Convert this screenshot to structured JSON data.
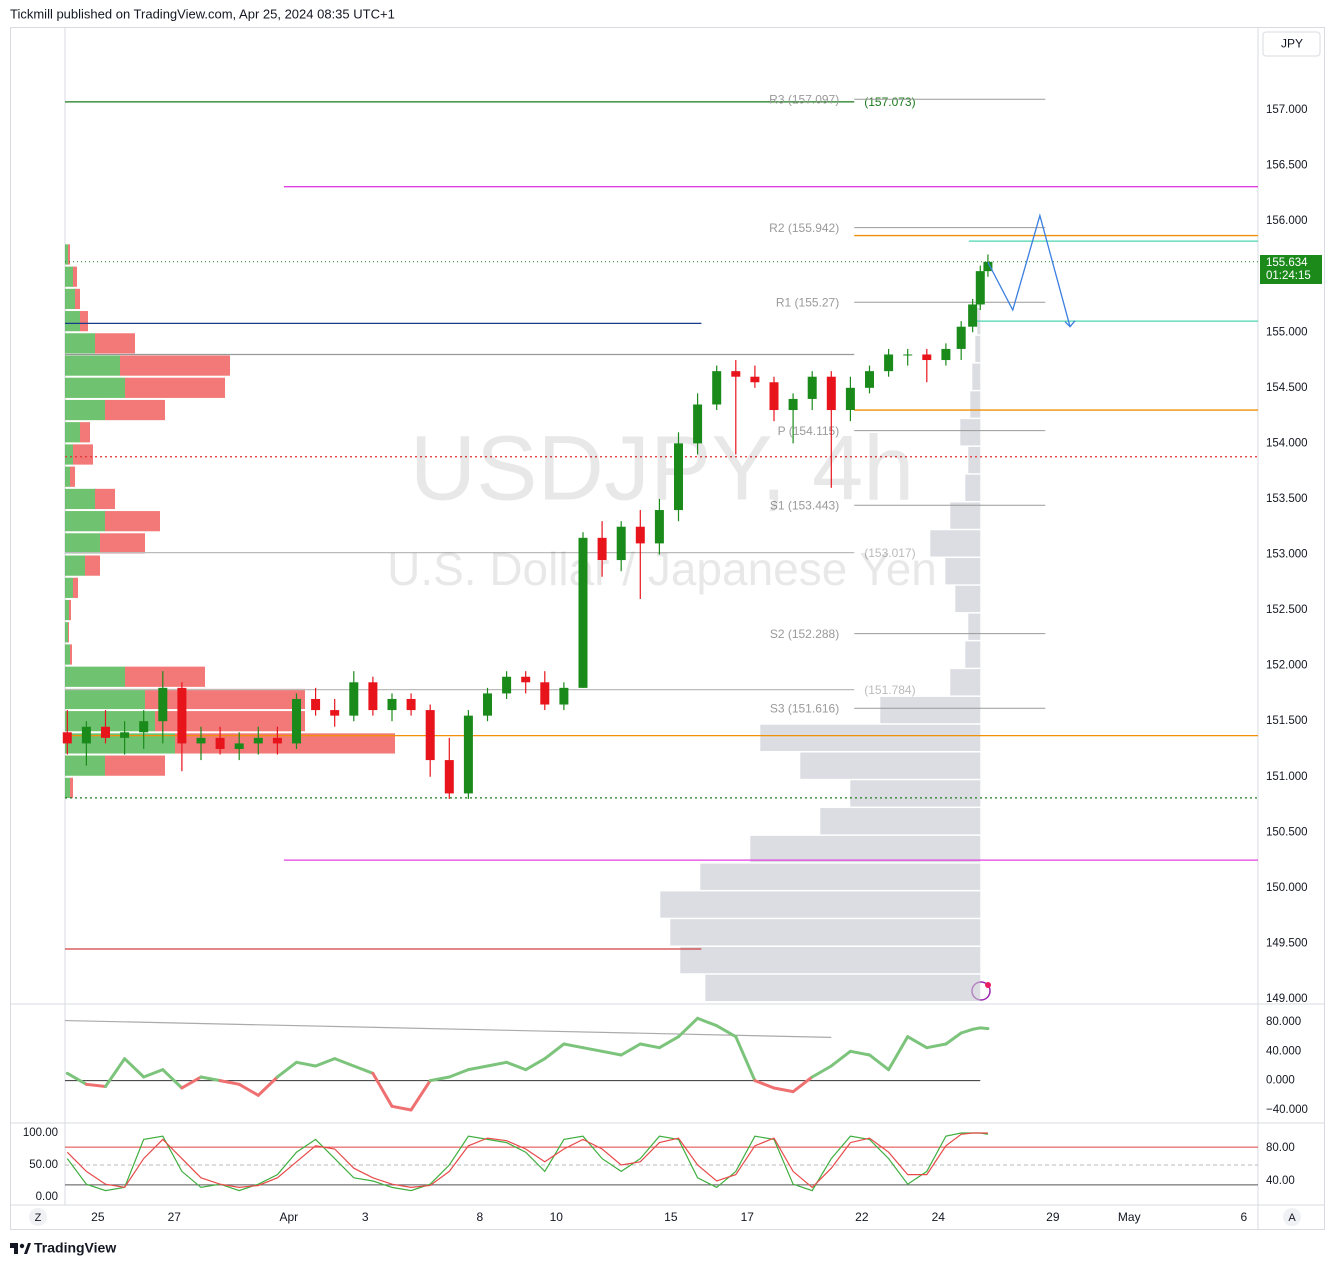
{
  "header": "Tickmill published on TradingView.com, Apr 25, 2024 08:35 UTC+1",
  "footer": "TradingView",
  "buttons": [
    "Z",
    "A"
  ],
  "chart_data": [
    {
      "type": "candlestick",
      "watermark": "USDJPY, 4h",
      "description": "U.S. Dollar / Japanese Yen",
      "currency": "JPY",
      "up_color": "#1a8a1a",
      "down_color": "#e8141c",
      "x": [
        -0.8,
        -0.3,
        0.2,
        0.7,
        1.2,
        1.7,
        2.2,
        2.7,
        3.2,
        3.7,
        4.2,
        4.7,
        5.2,
        5.7,
        6.2,
        6.7,
        7.2,
        7.7,
        8.2,
        8.7,
        9.2,
        9.7,
        10.2,
        10.7,
        11.2,
        11.7,
        12.2,
        12.7,
        13.2,
        13.7,
        14.2,
        14.7,
        15.2,
        15.7,
        16.2,
        16.7,
        17.2,
        17.7,
        18.2,
        18.7,
        19.2,
        19.7,
        20.2,
        20.7,
        21.2,
        21.7,
        22.2,
        22.6,
        22.9,
        23.1,
        23.3
      ],
      "open": [
        151.4,
        151.3,
        151.45,
        151.35,
        151.4,
        151.5,
        151.8,
        151.3,
        151.35,
        151.25,
        151.3,
        151.35,
        151.3,
        151.7,
        151.6,
        151.55,
        151.85,
        151.6,
        151.7,
        151.6,
        151.15,
        150.85,
        151.55,
        151.75,
        151.9,
        151.85,
        151.65,
        151.8,
        153.15,
        152.95,
        153.25,
        153.1,
        153.4,
        154.0,
        154.35,
        154.65,
        154.6,
        154.55,
        154.3,
        154.4,
        154.6,
        154.3,
        154.5,
        154.65,
        154.8,
        154.8,
        154.75,
        154.85,
        155.05,
        155.25,
        155.55
      ],
      "high": [
        151.6,
        151.5,
        151.6,
        151.5,
        151.6,
        151.95,
        151.85,
        151.45,
        151.45,
        151.4,
        151.45,
        151.45,
        151.75,
        151.8,
        151.7,
        151.95,
        151.9,
        151.75,
        151.75,
        151.65,
        151.35,
        151.6,
        151.8,
        151.95,
        151.95,
        151.95,
        151.85,
        153.2,
        153.3,
        153.3,
        153.4,
        153.5,
        154.1,
        154.45,
        154.7,
        154.75,
        154.7,
        154.6,
        154.45,
        154.65,
        154.65,
        154.6,
        154.7,
        154.85,
        154.85,
        154.85,
        154.9,
        155.1,
        155.3,
        155.6,
        155.7
      ],
      "low": [
        151.2,
        151.1,
        151.3,
        151.2,
        151.25,
        151.3,
        151.05,
        151.15,
        151.2,
        151.15,
        151.2,
        151.2,
        151.25,
        151.55,
        151.45,
        151.5,
        151.55,
        151.5,
        151.55,
        151.0,
        150.8,
        150.8,
        151.5,
        151.7,
        151.75,
        151.6,
        151.6,
        151.8,
        152.8,
        152.85,
        152.6,
        153.0,
        153.3,
        153.9,
        154.3,
        153.9,
        154.5,
        154.2,
        154.0,
        154.3,
        153.6,
        154.2,
        154.45,
        154.6,
        154.7,
        154.55,
        154.7,
        154.75,
        155.0,
        155.2,
        155.5
      ],
      "close": [
        151.3,
        151.45,
        151.35,
        151.4,
        151.5,
        151.8,
        151.3,
        151.35,
        151.25,
        151.3,
        151.35,
        151.3,
        151.7,
        151.6,
        151.55,
        151.85,
        151.6,
        151.7,
        151.6,
        151.15,
        150.85,
        151.55,
        151.75,
        151.9,
        151.85,
        151.65,
        151.8,
        153.15,
        152.95,
        153.25,
        153.1,
        153.4,
        154.0,
        154.35,
        154.65,
        154.6,
        154.55,
        154.3,
        154.4,
        154.6,
        154.3,
        154.5,
        154.65,
        154.8,
        154.8,
        154.75,
        154.85,
        155.05,
        155.25,
        155.55,
        155.634
      ],
      "xlim": [
        -0.86,
        30.37
      ],
      "xticks": [
        {
          "value": 0,
          "label": "25"
        },
        {
          "value": 2,
          "label": "27"
        },
        {
          "value": 5,
          "label": "Apr"
        },
        {
          "value": 7,
          "label": "3"
        },
        {
          "value": 10,
          "label": "8"
        },
        {
          "value": 12,
          "label": "10"
        },
        {
          "value": 15,
          "label": "15"
        },
        {
          "value": 17,
          "label": "17"
        },
        {
          "value": 20,
          "label": "22"
        },
        {
          "value": 22,
          "label": "24"
        },
        {
          "value": 25,
          "label": "29"
        },
        {
          "value": 27,
          "label": "May"
        },
        {
          "value": 30,
          "label": "6"
        }
      ],
      "ylim": [
        148.964,
        157.747
      ],
      "yticks": [
        {
          "value": 149,
          "label": "149.000"
        },
        {
          "value": 149.5,
          "label": "149.500"
        },
        {
          "value": 150,
          "label": "150.000"
        },
        {
          "value": 150.5,
          "label": "150.500"
        },
        {
          "value": 151,
          "label": "151.000"
        },
        {
          "value": 151.5,
          "label": "151.500"
        },
        {
          "value": 152,
          "label": "152.000"
        },
        {
          "value": 152.5,
          "label": "152.500"
        },
        {
          "value": 153,
          "label": "153.000"
        },
        {
          "value": 153.5,
          "label": "153.500"
        },
        {
          "value": 154,
          "label": "154.000"
        },
        {
          "value": 154.5,
          "label": "154.500"
        },
        {
          "value": 155,
          "label": "155.000"
        },
        {
          "value": 155.5,
          "label": "155.500"
        },
        {
          "value": 156,
          "label": "156.000"
        },
        {
          "value": 156.5,
          "label": "156.500"
        },
        {
          "value": 157,
          "label": "157.000"
        }
      ],
      "grid": false,
      "last_price": 155.634,
      "last_price_color": "#1b8a1b",
      "countdown": "01:24:15",
      "pivot_range": [
        19.8,
        24.8
      ],
      "pivots": [
        {
          "label": "R3 (157.097)",
          "value": 157.097
        },
        {
          "label": "R2 (155.942)",
          "value": 155.942
        },
        {
          "label": "R1 (155.27)",
          "value": 155.27
        },
        {
          "label": "P (154.115)",
          "value": 154.115
        },
        {
          "label": "S1 (153.443)",
          "value": 153.443
        },
        {
          "label": "S2 (152.288)",
          "value": 152.288
        },
        {
          "label": "S3 (151.616)",
          "value": 151.616
        }
      ],
      "lines": [
        {
          "value": 157.073,
          "color": "#1b7a1b",
          "x_range": [
            -0.86,
            19.8
          ],
          "label": "(157.073)"
        },
        {
          "value": 156.31,
          "color": "#e040e0",
          "x_range": [
            4.87,
            30.37
          ]
        },
        {
          "value": 150.25,
          "color": "#e040e0",
          "x_range": [
            4.87,
            30.37
          ]
        },
        {
          "value": 155.08,
          "color": "#1a3a8c",
          "x_range": [
            -0.86,
            15.8
          ]
        },
        {
          "value": 154.8,
          "color": "#999999",
          "x_range": [
            -0.86,
            19.8
          ]
        },
        {
          "value": 153.88,
          "color": "#e03030",
          "x_range": [
            -0.86,
            30.37
          ],
          "dash": true
        },
        {
          "value": 150.81,
          "color": "#1b7a1b",
          "x_range": [
            -0.86,
            30.37
          ],
          "dash": true
        },
        {
          "value": 151.37,
          "color": "#f0900a",
          "x_range": [
            -0.86,
            30.37
          ]
        },
        {
          "value": 155.87,
          "color": "#f0900a",
          "x_range": [
            19.8,
            30.37
          ]
        },
        {
          "value": 155.82,
          "color": "#4cd6b0",
          "x_range": [
            22.8,
            30.37
          ]
        },
        {
          "value": 155.1,
          "color": "#4cd6b0",
          "x_range": [
            22.8,
            30.37
          ]
        },
        {
          "value": 154.3,
          "color": "#f0900a",
          "x_range": [
            19.8,
            30.37
          ]
        },
        {
          "value": 149.45,
          "color": "#d04040",
          "x_range": [
            -0.86,
            15.8
          ]
        },
        {
          "value": 153.017,
          "color": "#bbbbbb",
          "x_range": [
            -0.86,
            19.8
          ],
          "label": "(153.017)"
        },
        {
          "value": 151.784,
          "color": "#bbbbbb",
          "x_range": [
            -0.86,
            19.8
          ],
          "label": "(151.784)"
        }
      ],
      "projection": {
        "color": "#3a7ee0",
        "x": [
          23.3,
          23.95,
          24.66,
          25.45
        ],
        "values": [
          155.63,
          155.2,
          156.05,
          155.05
        ]
      },
      "volume_profile": {
        "step": 0.2,
        "up_color": "#3fae3f",
        "down_color": "#ef4b4b",
        "prices": [
          155.7,
          155.5,
          155.3,
          155.1,
          154.9,
          154.7,
          154.5,
          154.3,
          154.1,
          153.9,
          153.7,
          153.5,
          153.3,
          153.1,
          152.9,
          152.7,
          152.5,
          152.3,
          152.1,
          151.9,
          151.7,
          151.5,
          151.3,
          151.1,
          150.9
        ],
        "up": [
          3,
          8,
          10,
          15,
          30,
          55,
          60,
          40,
          15,
          8,
          5,
          30,
          40,
          35,
          20,
          8,
          4,
          3,
          5,
          60,
          80,
          90,
          110,
          40,
          5
        ],
        "down": [
          2,
          4,
          5,
          8,
          40,
          110,
          100,
          60,
          10,
          20,
          5,
          20,
          55,
          45,
          15,
          5,
          2,
          1,
          2,
          80,
          160,
          150,
          220,
          60,
          3
        ]
      },
      "session_profile": {
        "step": 0.25,
        "anchor_x": 23.1,
        "color": "#c4c7cf",
        "prices": [
          149.1,
          149.35,
          149.6,
          149.85,
          150.1,
          150.35,
          150.6,
          150.85,
          151.1,
          151.35,
          151.6,
          151.85,
          152.1,
          152.35,
          152.6,
          152.85,
          153.1,
          153.35,
          153.6,
          153.85,
          154.1,
          154.35,
          154.6,
          154.85,
          155.1,
          155.35
        ],
        "volumes": [
          275,
          300,
          310,
          320,
          280,
          230,
          160,
          130,
          180,
          220,
          100,
          30,
          15,
          12,
          25,
          35,
          50,
          30,
          15,
          12,
          20,
          10,
          8,
          5,
          3,
          2
        ]
      }
    },
    {
      "type": "line",
      "up_color": "#7cc47c",
      "down_color": "#ef7070",
      "values": [
        10,
        -5,
        -8,
        30,
        5,
        15,
        -10,
        5,
        0,
        -5,
        -20,
        5,
        25,
        20,
        30,
        20,
        10,
        -35,
        -40,
        0,
        5,
        15,
        20,
        25,
        15,
        30,
        50,
        45,
        40,
        35,
        50,
        45,
        60,
        85,
        75,
        60,
        0,
        -10,
        -15,
        5,
        20,
        40,
        35,
        15,
        60,
        45,
        50,
        65,
        70,
        72,
        71
      ],
      "ylim": [
        -56.4,
        103.2
      ],
      "yticks": [
        {
          "value": 80,
          "label": "80.000"
        },
        {
          "value": 40,
          "label": "40.000"
        },
        {
          "value": 0,
          "label": "0.000"
        },
        {
          "value": -40,
          "label": "−40.000"
        }
      ],
      "baseline": {
        "value": 0,
        "x_range": [
          -0.86,
          23.1
        ]
      },
      "trendline": {
        "x": [
          -0.86,
          19.2
        ],
        "values": [
          82,
          59
        ]
      }
    },
    {
      "type": "line",
      "yaxis_side": "left",
      "series": [
        {
          "color": "#3fae3f",
          "values": [
            60,
            20,
            10,
            15,
            90,
            95,
            40,
            15,
            20,
            10,
            20,
            35,
            70,
            90,
            60,
            30,
            25,
            15,
            10,
            20,
            50,
            95,
            90,
            85,
            70,
            40,
            90,
            95,
            60,
            40,
            60,
            95,
            90,
            30,
            15,
            40,
            95,
            90,
            20,
            10,
            60,
            95,
            90,
            60,
            20,
            40,
            95,
            100,
            100,
            100,
            98
          ]
        },
        {
          "color": "#e84a4a",
          "values": [
            70,
            40,
            20,
            15,
            60,
            90,
            60,
            30,
            20,
            15,
            18,
            30,
            55,
            80,
            75,
            45,
            30,
            20,
            15,
            18,
            40,
            80,
            92,
            88,
            75,
            55,
            75,
            90,
            75,
            50,
            55,
            85,
            92,
            50,
            25,
            35,
            80,
            92,
            40,
            15,
            45,
            85,
            92,
            70,
            35,
            35,
            80,
            98,
            100,
            100,
            100
          ]
        }
      ],
      "ylim": [
        -12.5,
        112.5
      ],
      "yticks": [
        {
          "value": 100,
          "label": "100.00"
        },
        {
          "value": 50,
          "label": "50.00"
        },
        {
          "value": 0,
          "label": "0.00"
        }
      ],
      "y2lim": [
        10.9,
        107.9
      ],
      "y2ticks": [
        {
          "value": 80,
          "label": "80.00"
        },
        {
          "value": 40,
          "label": "40.00"
        }
      ],
      "bands": [
        {
          "value": 78,
          "color": "#e04040"
        },
        {
          "value": 50,
          "color": "#bbbbbb",
          "dash": true
        },
        {
          "value": 19,
          "color": "#555555"
        }
      ]
    }
  ]
}
